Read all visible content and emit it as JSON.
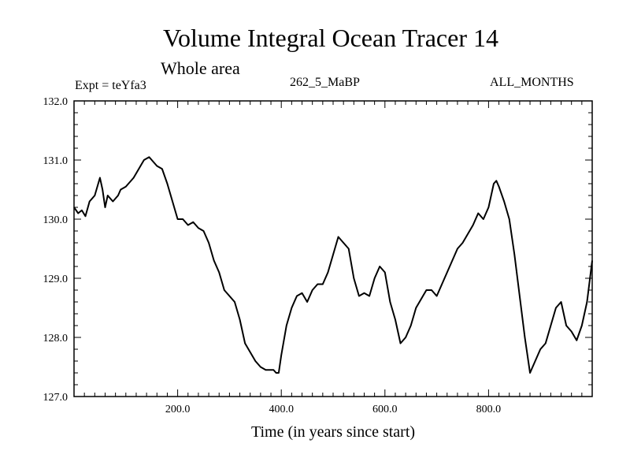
{
  "chart_data": {
    "type": "line",
    "title": "Volume Integral Ocean Tracer 14",
    "subtitle": "Whole area",
    "annotations": {
      "left": "Expt = teYfa3",
      "center": "262_5_MaBP",
      "right": "ALL_MONTHS"
    },
    "xlabel": "Time (in years since start)",
    "ylabel": "",
    "xlim": [
      0,
      1000
    ],
    "ylim": [
      127.0,
      132.0
    ],
    "x_ticks": [
      {
        "value": 200,
        "label": "200.0"
      },
      {
        "value": 400,
        "label": "400.0"
      },
      {
        "value": 600,
        "label": "600.0"
      },
      {
        "value": 800,
        "label": "800.0"
      }
    ],
    "y_ticks": [
      {
        "value": 127.0,
        "label": "127.0"
      },
      {
        "value": 128.0,
        "label": "128.0"
      },
      {
        "value": 129.0,
        "label": "129.0"
      },
      {
        "value": 130.0,
        "label": "130.0"
      },
      {
        "value": 131.0,
        "label": "131.0"
      },
      {
        "value": 132.0,
        "label": "132.0"
      }
    ],
    "grid": false,
    "line_color": "#000000",
    "series": [
      {
        "x": [
          0,
          8,
          15,
          22,
          30,
          40,
          50,
          55,
          60,
          65,
          75,
          85,
          90,
          100,
          115,
          125,
          135,
          145,
          150,
          160,
          170,
          180,
          190,
          200,
          210,
          220,
          230,
          240,
          250,
          260,
          270,
          280,
          290,
          300,
          310,
          320,
          330,
          340,
          350,
          360,
          370,
          380,
          385,
          390,
          395,
          400,
          410,
          420,
          430,
          440,
          450,
          460,
          470,
          480,
          490,
          500,
          510,
          520,
          530,
          540,
          550,
          560,
          570,
          580,
          590,
          600,
          610,
          620,
          630,
          640,
          650,
          660,
          670,
          680,
          690,
          700,
          710,
          720,
          730,
          740,
          750,
          760,
          770,
          780,
          790,
          800,
          810,
          815,
          820,
          830,
          840,
          850,
          860,
          870,
          880,
          890,
          900,
          910,
          920,
          930,
          940,
          950,
          960,
          970,
          980,
          990,
          1000
        ],
        "y": [
          130.2,
          130.1,
          130.15,
          130.05,
          130.3,
          130.4,
          130.7,
          130.5,
          130.2,
          130.4,
          130.3,
          130.4,
          130.5,
          130.55,
          130.7,
          130.85,
          131.0,
          131.05,
          131.0,
          130.9,
          130.85,
          130.6,
          130.3,
          130.0,
          130.0,
          129.9,
          129.95,
          129.85,
          129.8,
          129.6,
          129.3,
          129.1,
          128.8,
          128.7,
          128.6,
          128.3,
          127.9,
          127.75,
          127.6,
          127.5,
          127.45,
          127.45,
          127.45,
          127.4,
          127.4,
          127.7,
          128.2,
          128.5,
          128.7,
          128.75,
          128.6,
          128.8,
          128.9,
          128.9,
          129.1,
          129.4,
          129.7,
          129.6,
          129.5,
          129.0,
          128.7,
          128.75,
          128.7,
          129.0,
          129.2,
          129.1,
          128.6,
          128.3,
          127.9,
          128.0,
          128.2,
          128.5,
          128.65,
          128.8,
          128.8,
          128.7,
          128.9,
          129.1,
          129.3,
          129.5,
          129.6,
          129.75,
          129.9,
          130.1,
          130.0,
          130.2,
          130.6,
          130.65,
          130.55,
          130.3,
          130.0,
          129.4,
          128.7,
          128.0,
          127.4,
          127.6,
          127.8,
          127.9,
          128.2,
          128.5,
          128.6,
          128.2,
          128.1,
          127.95,
          128.2,
          128.6,
          129.3
        ]
      }
    ]
  }
}
